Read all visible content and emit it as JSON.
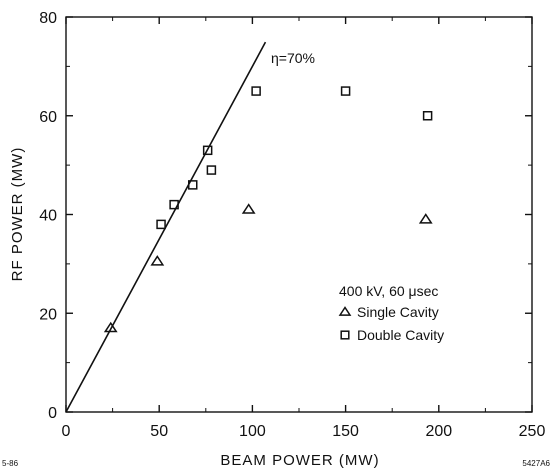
{
  "chart_data": {
    "type": "scatter",
    "title": "",
    "xlabel": "BEAM POWER (MW)",
    "ylabel": "RF POWER (MW)",
    "xlim": [
      0,
      250
    ],
    "ylim": [
      0,
      80
    ],
    "xticks": [
      "0",
      "50",
      "100",
      "150",
      "200",
      "250"
    ],
    "yticks": [
      "0",
      "20",
      "40",
      "60",
      "80"
    ],
    "grid": false,
    "series": [
      {
        "name": "Single Cavity",
        "marker": "triangle",
        "points": [
          {
            "x": 24,
            "y": 17
          },
          {
            "x": 49,
            "y": 30.5
          },
          {
            "x": 98,
            "y": 41
          },
          {
            "x": 193,
            "y": 39
          }
        ]
      },
      {
        "name": "Double Cavity",
        "marker": "square",
        "points": [
          {
            "x": 51,
            "y": 38
          },
          {
            "x": 58,
            "y": 42
          },
          {
            "x": 68,
            "y": 46
          },
          {
            "x": 76,
            "y": 53
          },
          {
            "x": 78,
            "y": 49
          },
          {
            "x": 102,
            "y": 65
          },
          {
            "x": 150,
            "y": 65
          },
          {
            "x": 194,
            "y": 60
          }
        ]
      }
    ],
    "reference_line": {
      "label": "η=70%",
      "slope": 0.7,
      "x_range": [
        0,
        107
      ]
    },
    "legend": {
      "placement": "bottom-right",
      "header": "400 kV, 60 μsec"
    },
    "corner_labels": {
      "left": "5-86",
      "right": "5427A6"
    }
  }
}
